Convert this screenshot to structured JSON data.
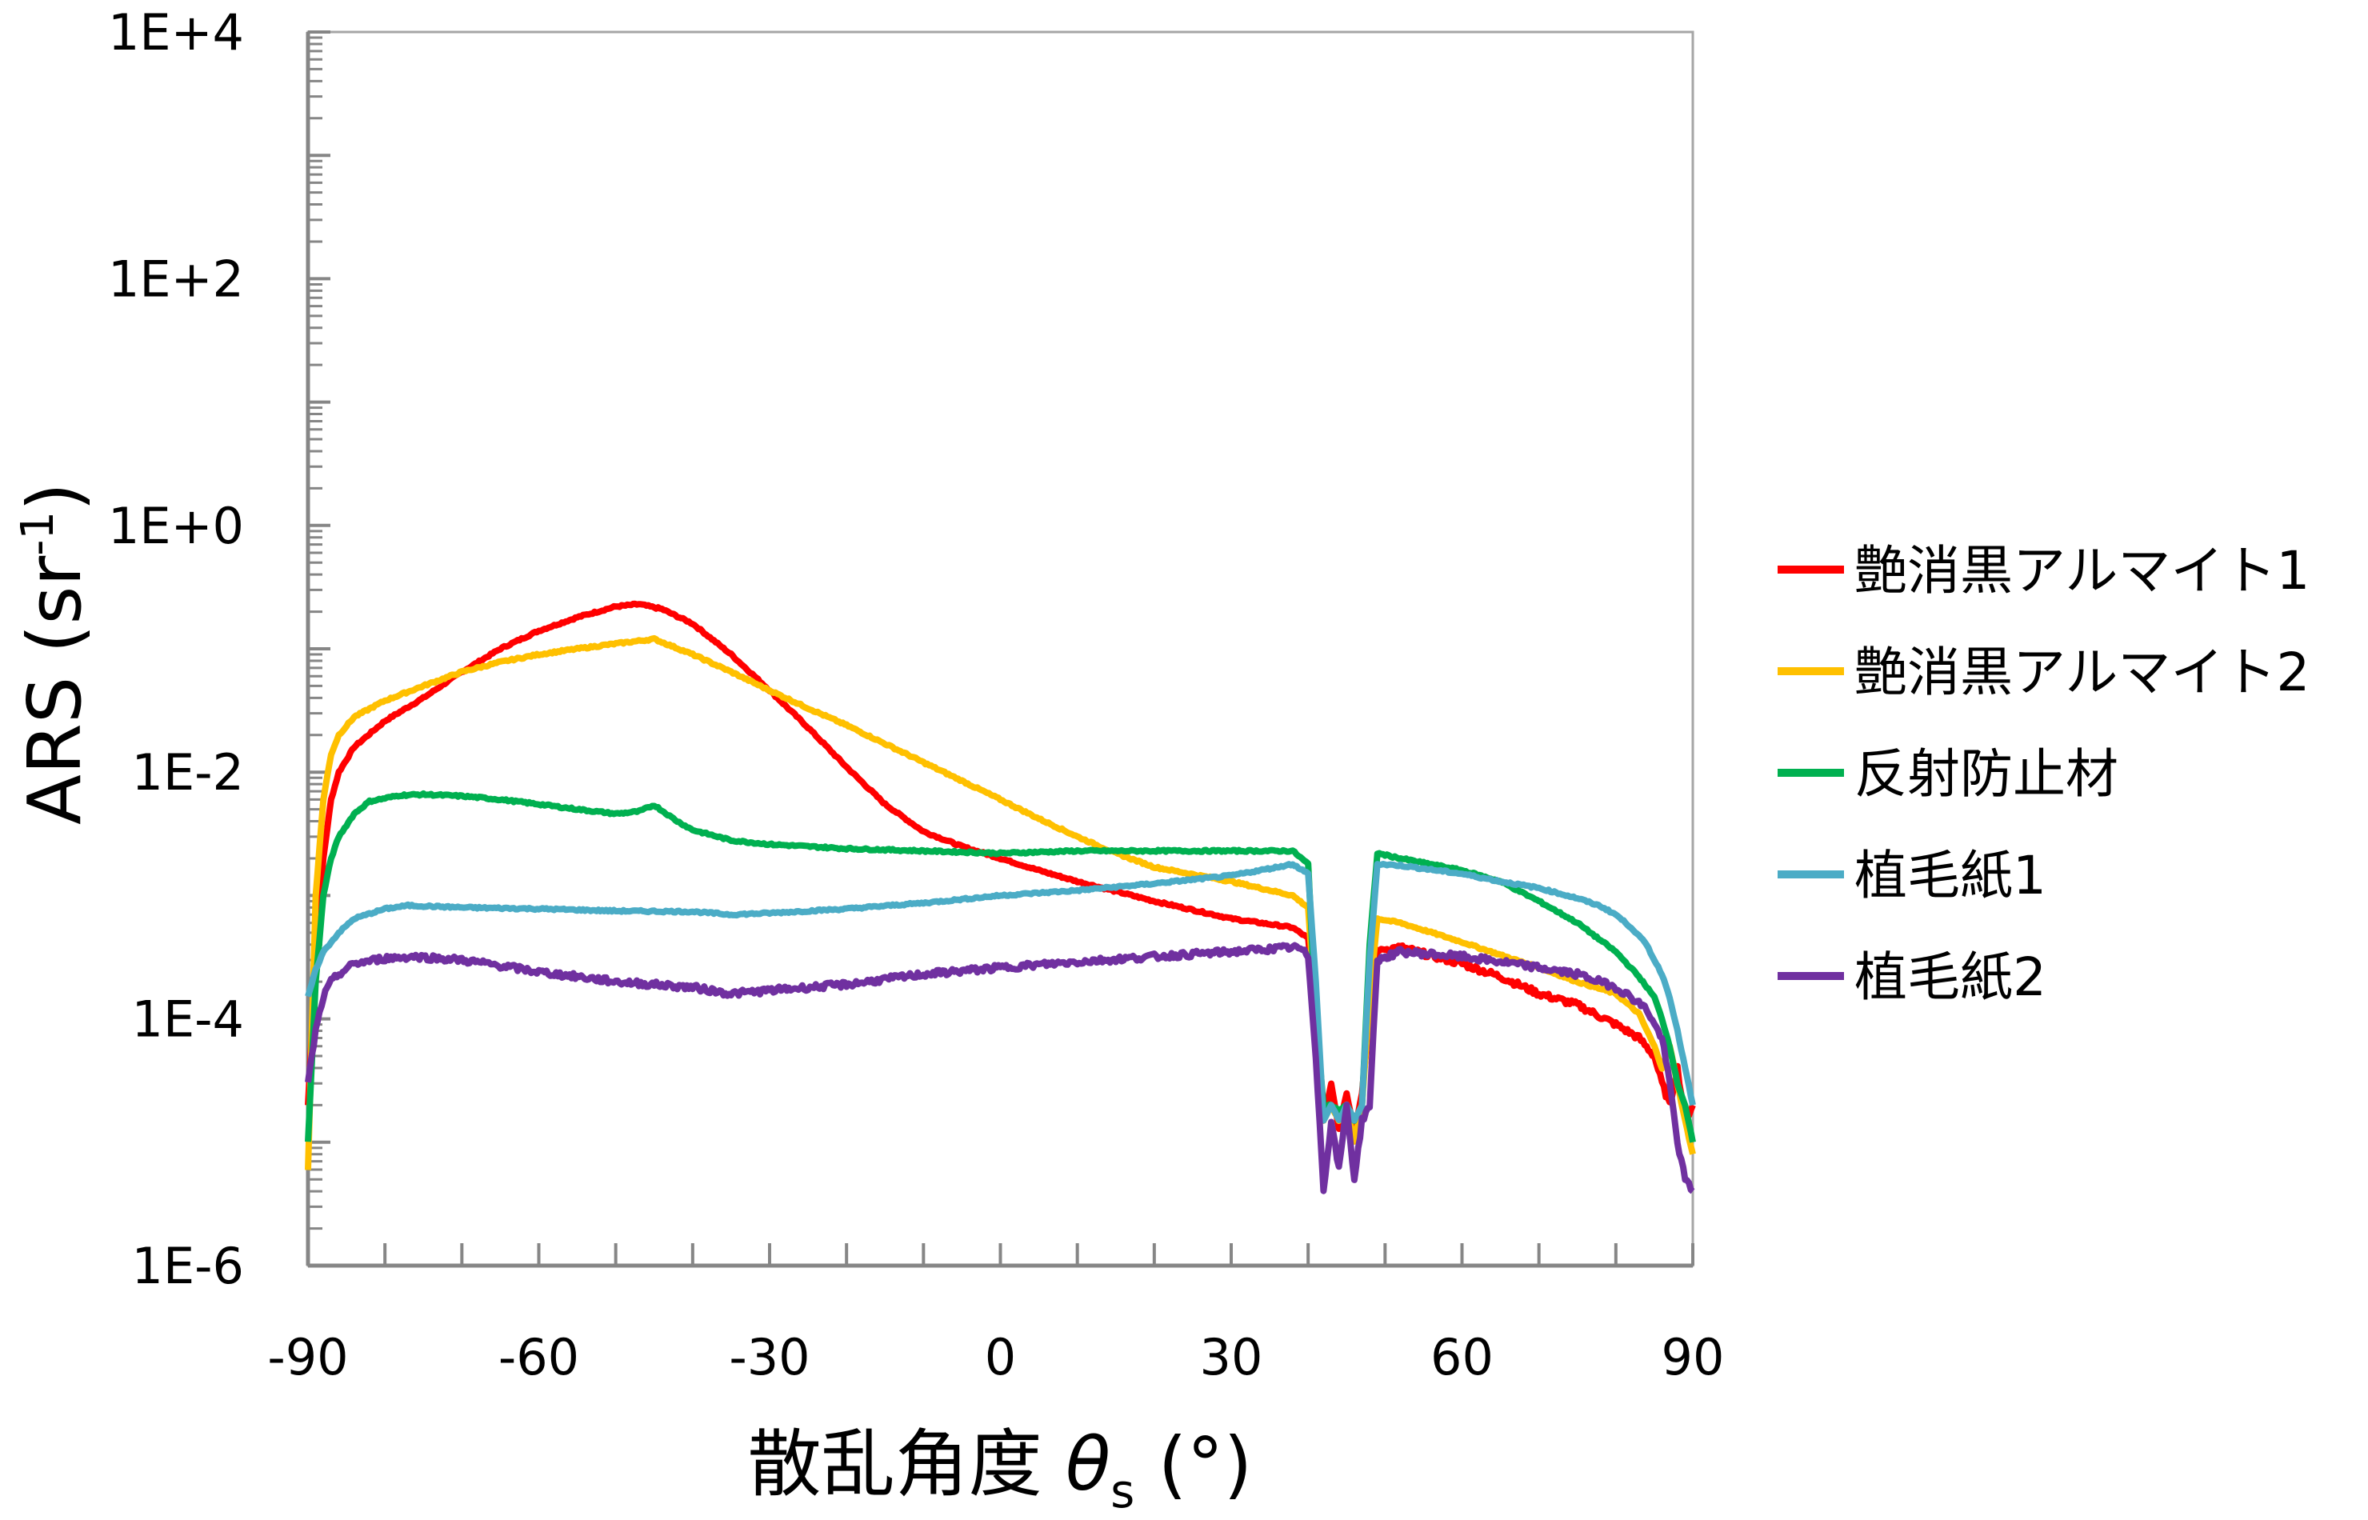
{
  "chart_data": {
    "type": "line",
    "title": "",
    "xlabel": {
      "main": "散乱角度 ",
      "symbol": "θ",
      "subscript": "s",
      "unit": " (°)"
    },
    "ylabel": {
      "main": "ARS (sr",
      "superscript": "-1",
      "close": ")"
    },
    "xlim": [
      -90,
      90
    ],
    "ylim": [
      1e-06,
      10000.0
    ],
    "yscale": "log",
    "xticks": [
      -90,
      -60,
      -30,
      0,
      30,
      60,
      90
    ],
    "xtick_labels": [
      "-90",
      "-60",
      "-30",
      "0",
      "30",
      "60",
      "90"
    ],
    "yticks": [
      1e-06,
      0.0001,
      0.01,
      1,
      100,
      10000
    ],
    "ytick_labels": [
      "1E-6",
      "1E-4",
      "1E-2",
      "1E+0",
      "1E+2",
      "1E+4"
    ],
    "grid": false,
    "legend_position": "right",
    "series": [
      {
        "name": "艶消黒アルマイト1",
        "color": "#FF0000",
        "x": [
          -90,
          -89,
          -88,
          -87,
          -86,
          -84,
          -80,
          -75,
          -70,
          -65,
          -60,
          -55,
          -50,
          -47,
          -44,
          -40,
          -35,
          -30,
          -25,
          -20,
          -15,
          -10,
          -5,
          0,
          5,
          10,
          20,
          30,
          38,
          40,
          41,
          42,
          43,
          44,
          45,
          46,
          47,
          48,
          49,
          52,
          60,
          65,
          70,
          75,
          80,
          83,
          85,
          86,
          87,
          88,
          89,
          90
        ],
        "y": [
          2e-05,
          0.0003,
          0.002,
          0.006,
          0.01,
          0.016,
          0.026,
          0.04,
          0.065,
          0.1,
          0.14,
          0.18,
          0.22,
          0.23,
          0.21,
          0.16,
          0.09,
          0.046,
          0.023,
          0.011,
          0.0055,
          0.0033,
          0.0025,
          0.002,
          0.0016,
          0.0013,
          0.0009,
          0.00065,
          0.00055,
          0.00045,
          0.0001,
          1.5e-05,
          3e-05,
          1.3e-05,
          2.5e-05,
          1.2e-05,
          2.5e-05,
          0.00011,
          0.00036,
          0.00038,
          0.00028,
          0.00022,
          0.00016,
          0.00013,
          9e-05,
          7e-05,
          5e-05,
          3e-05,
          2e-05,
          4e-05,
          1.5e-05,
          2e-05
        ]
      },
      {
        "name": "艶消黒アルマイト2",
        "color": "#FFC000",
        "x": [
          -90,
          -89,
          -88,
          -87,
          -86,
          -84,
          -80,
          -75,
          -70,
          -65,
          -60,
          -55,
          -50,
          -45,
          -40,
          -35,
          -30,
          -25,
          -20,
          -15,
          -10,
          -5,
          0,
          5,
          10,
          15,
          20,
          30,
          38,
          40,
          41,
          42,
          43,
          44,
          45,
          46,
          47,
          48,
          49,
          52,
          60,
          65,
          70,
          75,
          80,
          83,
          85,
          86,
          87,
          88,
          89,
          90
        ],
        "y": [
          6e-06,
          0.001,
          0.006,
          0.014,
          0.02,
          0.028,
          0.038,
          0.05,
          0.065,
          0.078,
          0.09,
          0.1,
          0.11,
          0.12,
          0.09,
          0.065,
          0.046,
          0.033,
          0.024,
          0.017,
          0.012,
          0.0085,
          0.006,
          0.0042,
          0.003,
          0.0022,
          0.0017,
          0.0013,
          0.001,
          0.0008,
          0.0001,
          1.5e-05,
          2e-05,
          1.5e-05,
          2e-05,
          1e-05,
          2e-05,
          0.00015,
          0.00065,
          0.0006,
          0.00042,
          0.00033,
          0.00026,
          0.0002,
          0.00016,
          0.00011,
          6e-05,
          4e-05,
          6e-05,
          3e-05,
          1.5e-05,
          8e-06
        ]
      },
      {
        "name": "反射防止材",
        "color": "#00B050",
        "x": [
          -90,
          -89,
          -88,
          -87,
          -86,
          -84,
          -82,
          -78,
          -75,
          -70,
          -65,
          -60,
          -55,
          -50,
          -47,
          -45,
          -42,
          -40,
          -35,
          -30,
          -20,
          -10,
          0,
          10,
          20,
          30,
          38,
          40,
          41,
          42,
          43,
          44,
          45,
          46,
          47,
          48,
          49,
          52,
          60,
          65,
          70,
          75,
          80,
          83,
          85,
          86,
          87,
          88,
          89,
          90
        ],
        "y": [
          1e-05,
          0.0002,
          0.001,
          0.002,
          0.003,
          0.0046,
          0.0058,
          0.0065,
          0.0066,
          0.0064,
          0.006,
          0.0055,
          0.005,
          0.0046,
          0.0048,
          0.0054,
          0.004,
          0.0034,
          0.0028,
          0.0026,
          0.0024,
          0.0023,
          0.0022,
          0.0023,
          0.0023,
          0.0023,
          0.0023,
          0.0018,
          0.0001,
          2e-05,
          2e-05,
          1.8e-05,
          2e-05,
          1.5e-05,
          2e-05,
          0.0004,
          0.0022,
          0.002,
          0.0016,
          0.0013,
          0.0009,
          0.0006,
          0.00035,
          0.00022,
          0.00015,
          0.0001,
          6e-05,
          3e-05,
          2e-05,
          1e-05
        ]
      },
      {
        "name": "植毛紙1",
        "color": "#4BACC6",
        "x": [
          -90,
          -89,
          -88,
          -86,
          -84,
          -80,
          -77,
          -70,
          -60,
          -50,
          -40,
          -35,
          -30,
          -20,
          -10,
          0,
          10,
          20,
          30,
          36,
          38,
          40,
          41,
          42,
          43,
          44,
          45,
          46,
          47,
          48,
          49,
          52,
          60,
          65,
          70,
          75,
          78,
          80,
          82,
          84,
          85,
          86,
          87,
          88,
          89,
          90
        ],
        "y": [
          0.00015,
          0.00025,
          0.00035,
          0.0005,
          0.00065,
          0.00078,
          0.00083,
          0.0008,
          0.00078,
          0.00075,
          0.00074,
          0.0007,
          0.00072,
          0.00078,
          0.00087,
          0.001,
          0.0011,
          0.00125,
          0.00145,
          0.0017,
          0.0018,
          0.0015,
          0.0002,
          1.5e-05,
          2e-05,
          1.5e-05,
          2e-05,
          1.5e-05,
          2e-05,
          0.0003,
          0.0018,
          0.00175,
          0.0015,
          0.0013,
          0.00115,
          0.00095,
          0.00082,
          0.0007,
          0.00055,
          0.0004,
          0.0003,
          0.00023,
          0.00015,
          8e-05,
          4e-05,
          2e-05
        ]
      },
      {
        "name": "植毛紙2",
        "color": "#7030A0",
        "x": [
          -90,
          -89,
          -88,
          -87,
          -86,
          -84,
          -80,
          -76,
          -70,
          -65,
          -60,
          -55,
          -50,
          -45,
          -40,
          -35,
          -30,
          -25,
          -20,
          -10,
          0,
          10,
          20,
          30,
          38,
          39,
          40,
          41,
          42,
          43,
          44,
          45,
          46,
          47,
          48,
          49,
          52,
          60,
          65,
          70,
          75,
          78,
          80,
          82,
          84,
          85,
          86,
          87,
          88,
          89,
          90
        ],
        "y": [
          3e-05,
          8e-05,
          0.00015,
          0.0002,
          0.00023,
          0.00028,
          0.00031,
          0.00032,
          0.0003,
          0.00027,
          0.00024,
          0.00022,
          0.0002,
          0.00019,
          0.00018,
          0.00016,
          0.00017,
          0.00018,
          0.00019,
          0.00023,
          0.00026,
          0.00029,
          0.00032,
          0.00035,
          0.00038,
          0.00037,
          0.00032,
          5e-05,
          4e-06,
          1.5e-05,
          6e-06,
          2e-05,
          5e-06,
          1.5e-05,
          2e-05,
          0.0003,
          0.00035,
          0.00032,
          0.00029,
          0.00026,
          0.00023,
          0.0002,
          0.00018,
          0.00015,
          0.00012,
          9e-05,
          7e-05,
          3e-05,
          1e-05,
          5e-06,
          4e-06
        ]
      }
    ]
  }
}
